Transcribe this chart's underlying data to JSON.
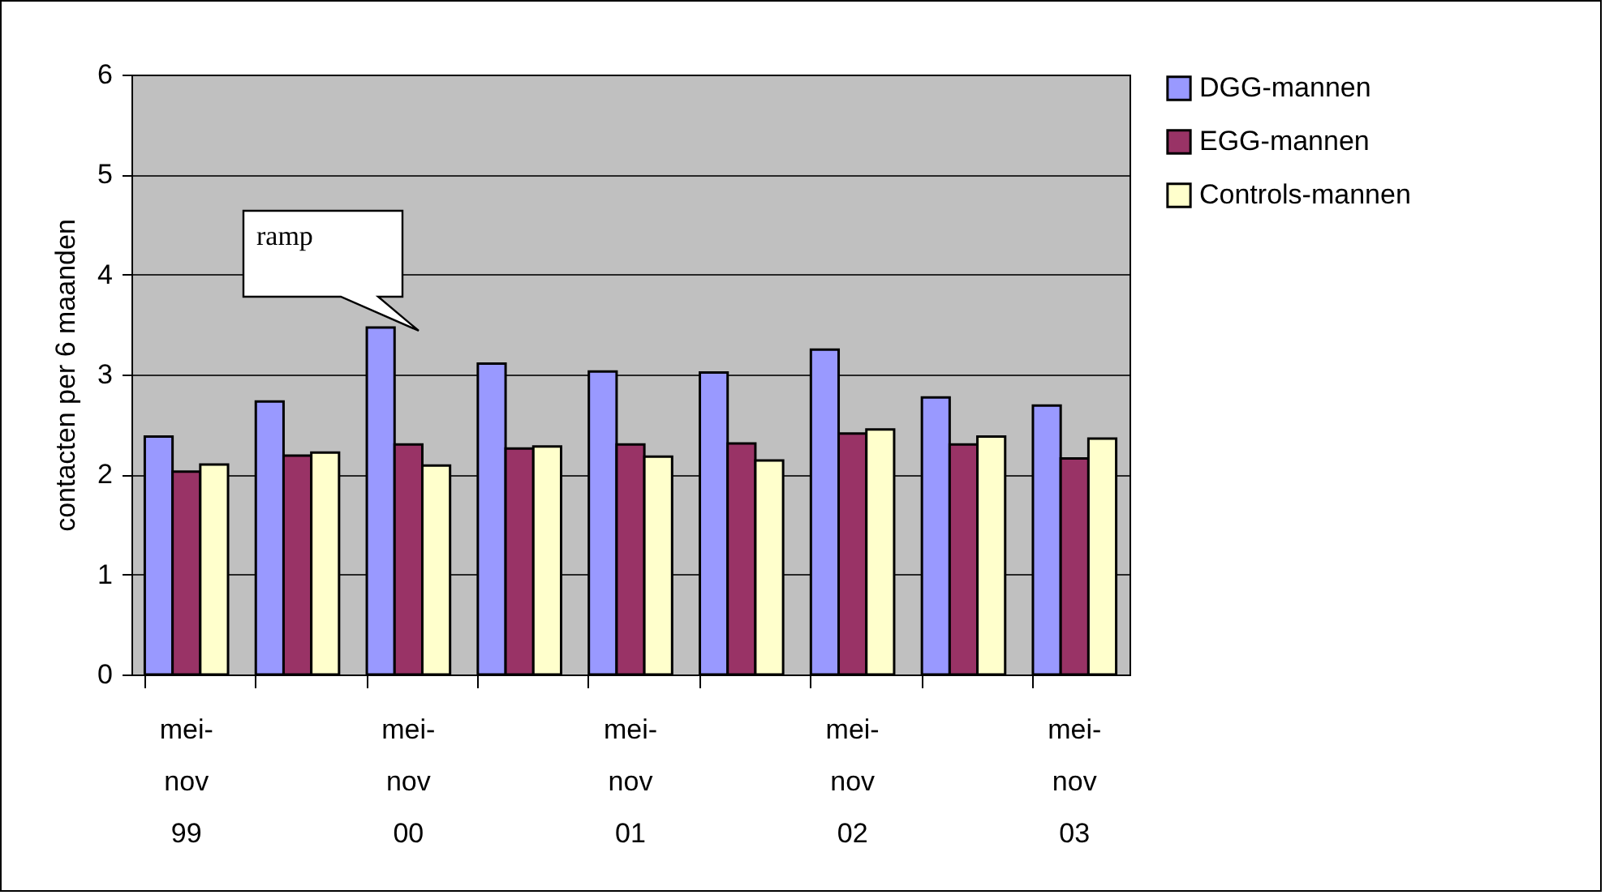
{
  "chart_data": {
    "type": "bar",
    "ylabel": "contacten per 6 maanden",
    "categories": [
      "mei-nov 99",
      null,
      "mei-nov 00",
      null,
      "mei-nov 01",
      null,
      "mei-nov 02",
      null,
      "mei-nov 03"
    ],
    "series": [
      {
        "name": "DGG-mannen",
        "color": "#9999ff",
        "values": [
          2.38,
          2.73,
          3.47,
          3.11,
          3.03,
          3.02,
          3.25,
          2.77,
          2.69
        ]
      },
      {
        "name": "EGG-mannen",
        "color": "#993366",
        "values": [
          2.03,
          2.19,
          2.3,
          2.26,
          2.3,
          2.31,
          2.41,
          2.3,
          2.16
        ]
      },
      {
        "name": "Controls-mannen",
        "color": "#ffffcc",
        "values": [
          2.1,
          2.22,
          2.09,
          2.28,
          2.18,
          2.14,
          2.45,
          2.38,
          2.36
        ]
      }
    ],
    "ylim": [
      0,
      6
    ],
    "yticks": [
      0,
      1,
      2,
      3,
      4,
      5,
      6
    ],
    "grid": "y",
    "legend": "right",
    "annotations": [
      "ramp"
    ]
  }
}
